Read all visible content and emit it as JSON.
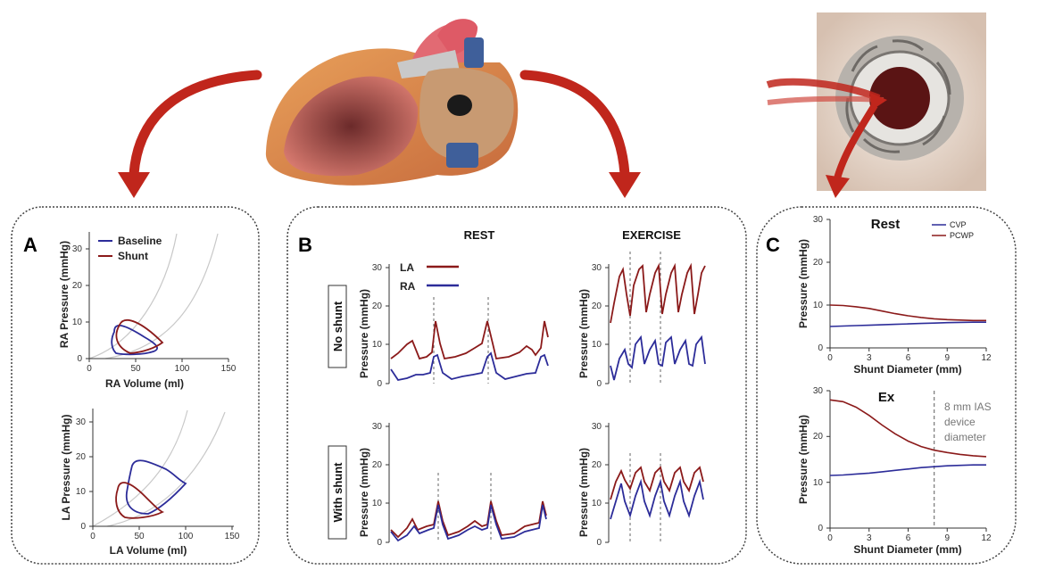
{
  "colors": {
    "ra": "#2c2c99",
    "la": "#8b1a1a",
    "arrow": "#c0261c",
    "border": "#444444",
    "grey_curve": "#c8c8c8"
  },
  "panel_a": {
    "letter": "A",
    "legend": [
      "Baseline",
      "Shunt"
    ],
    "top_chart": {
      "ylabel": "RA Pressure (mmHg)",
      "xlabel": "RA Volume (ml)",
      "xticks": [
        "0",
        "50",
        "100",
        "150"
      ],
      "yticks": [
        "0",
        "10",
        "20",
        "30"
      ]
    },
    "bottom_chart": {
      "ylabel": "LA Pressure (mmHg)",
      "xlabel": "LA Volume (ml)",
      "xticks": [
        "0",
        "50",
        "100",
        "150"
      ],
      "yticks": [
        "0",
        "10",
        "20",
        "30"
      ]
    }
  },
  "panel_b": {
    "letter": "B",
    "col_rest": "REST",
    "col_exercise": "EXERCISE",
    "row_no_shunt": "No shunt",
    "row_with_shunt": "With shunt",
    "legend": [
      "LA",
      "RA"
    ],
    "ylabel": "Pressure (mmHg)",
    "yticks": [
      "0",
      "10",
      "20",
      "30"
    ]
  },
  "panel_c": {
    "letter": "C",
    "top_title": "Rest",
    "bottom_title": "Ex",
    "legend": [
      "CVP",
      "PCWP"
    ],
    "ylabel": "Pressure (mmHg)",
    "xlabel": "Shunt Diameter (mm)",
    "xticks": [
      "0",
      "3",
      "6",
      "9",
      "12"
    ],
    "yticks": [
      "0",
      "10",
      "20",
      "30"
    ],
    "annotation": [
      "8 mm IAS",
      "device",
      "diameter"
    ]
  },
  "chart_data": [
    {
      "type": "line",
      "xlabel": "Shunt Diameter (mm)",
      "ylabel": "Pressure (mmHg)",
      "title": "Rest",
      "xlim": [
        0,
        12
      ],
      "ylim": [
        0,
        30
      ],
      "x": [
        0,
        1,
        2,
        3,
        4,
        5,
        6,
        7,
        8,
        9,
        10,
        11,
        12
      ],
      "series": [
        {
          "name": "CVP",
          "values": [
            5.0,
            5.1,
            5.2,
            5.3,
            5.4,
            5.5,
            5.6,
            5.7,
            5.8,
            5.9,
            5.95,
            6.0,
            6.0
          ]
        },
        {
          "name": "PCWP",
          "values": [
            10.0,
            9.9,
            9.6,
            9.2,
            8.6,
            8.0,
            7.5,
            7.1,
            6.8,
            6.6,
            6.5,
            6.4,
            6.4
          ]
        }
      ]
    },
    {
      "type": "line",
      "xlabel": "Shunt Diameter (mm)",
      "ylabel": "Pressure (mmHg)",
      "title": "Ex",
      "xlim": [
        0,
        12
      ],
      "ylim": [
        0,
        30
      ],
      "x": [
        0,
        1,
        2,
        3,
        4,
        5,
        6,
        7,
        8,
        9,
        10,
        11,
        12
      ],
      "series": [
        {
          "name": "CVP",
          "values": [
            11.5,
            11.6,
            11.8,
            12.0,
            12.3,
            12.6,
            12.9,
            13.2,
            13.4,
            13.6,
            13.7,
            13.8,
            13.8
          ]
        },
        {
          "name": "PCWP",
          "values": [
            28.0,
            27.6,
            26.4,
            24.6,
            22.5,
            20.6,
            19.0,
            17.8,
            17.0,
            16.5,
            16.1,
            15.8,
            15.6
          ]
        }
      ],
      "annotation_x": 8
    }
  ]
}
